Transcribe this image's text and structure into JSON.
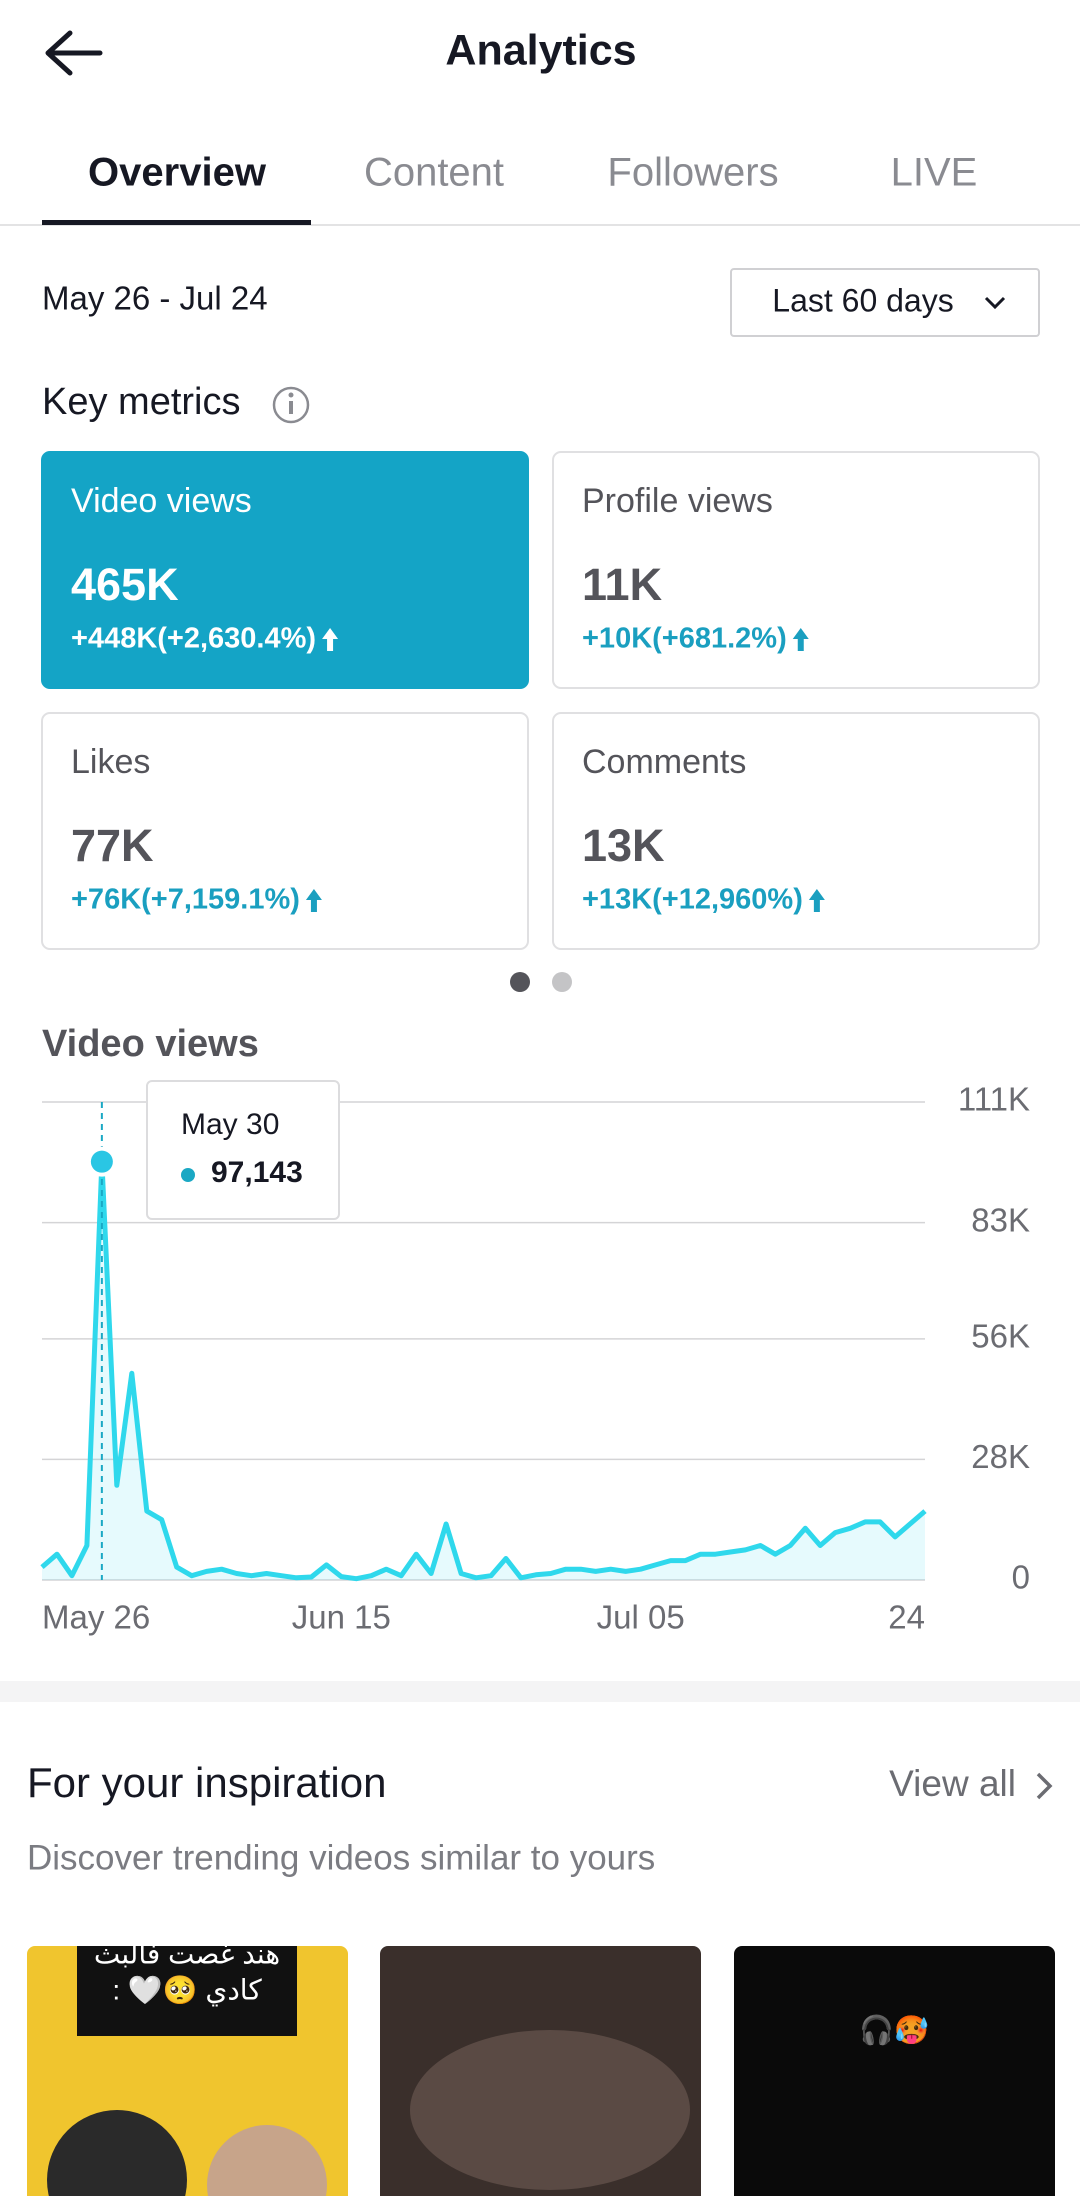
{
  "header": {
    "title": "Analytics"
  },
  "tabs": [
    "Overview",
    "Content",
    "Followers",
    "LIVE"
  ],
  "date_range": "May 26 - Jul 24",
  "period": "Last 60 days",
  "key_metrics": {
    "title": "Key metrics",
    "cards": [
      {
        "label": "Video views",
        "value": "465K",
        "change": "+448K(+2,630.4%)"
      },
      {
        "label": "Profile views",
        "value": "11K",
        "change": "+10K(+681.2%)"
      },
      {
        "label": "Likes",
        "value": "77K",
        "change": "+76K(+7,159.1%)"
      },
      {
        "label": "Comments",
        "value": "13K",
        "change": "+13K(+12,960%)"
      }
    ]
  },
  "chart_data": {
    "type": "line",
    "title": "Video views",
    "color": "#2fd8ec",
    "values": [
      3000,
      6000,
      1000,
      8000,
      97143,
      22000,
      48000,
      16000,
      14000,
      3000,
      1000,
      2000,
      2500,
      1500,
      1000,
      1500,
      1000,
      500,
      700,
      3500,
      800,
      300,
      1000,
      2500,
      1000,
      6000,
      1500,
      13000,
      1500,
      500,
      1000,
      5000,
      500,
      1200,
      1500,
      2500,
      2500,
      2000,
      2500,
      2000,
      2500,
      3500,
      4500,
      4500,
      6000,
      6000,
      6500,
      7000,
      8000,
      6000,
      8000,
      12000,
      8000,
      11000,
      12000,
      13500,
      13500,
      10000,
      13000,
      16000
    ],
    "xlim": [
      0,
      59
    ],
    "xticks": [
      {
        "value": 0,
        "label": "May 26"
      },
      {
        "value": 20,
        "label": "Jun 15"
      },
      {
        "value": 40,
        "label": "Jul 05"
      },
      {
        "value": 59,
        "label": "24"
      }
    ],
    "ylim": [
      0,
      111000
    ],
    "yticks": [
      {
        "value": 0,
        "label": "0"
      },
      {
        "value": 28000,
        "label": "28K"
      },
      {
        "value": 56000,
        "label": "56K"
      },
      {
        "value": 83000,
        "label": "83K"
      },
      {
        "value": 111000,
        "label": "111K"
      }
    ],
    "grid": true,
    "tooltip": {
      "label": "May 30",
      "value_label": "97,143"
    }
  },
  "inspiration": {
    "title": "For your inspiration",
    "view_all": "View all",
    "subtitle": "Discover trending videos similar to yours",
    "thumbnails": [
      {
        "caption": [
          "هند غصت فالبث",
          "كادي 🥺🤍 :"
        ]
      },
      {
        "caption": []
      },
      {
        "caption": [
          "🎧🥵"
        ]
      }
    ]
  }
}
